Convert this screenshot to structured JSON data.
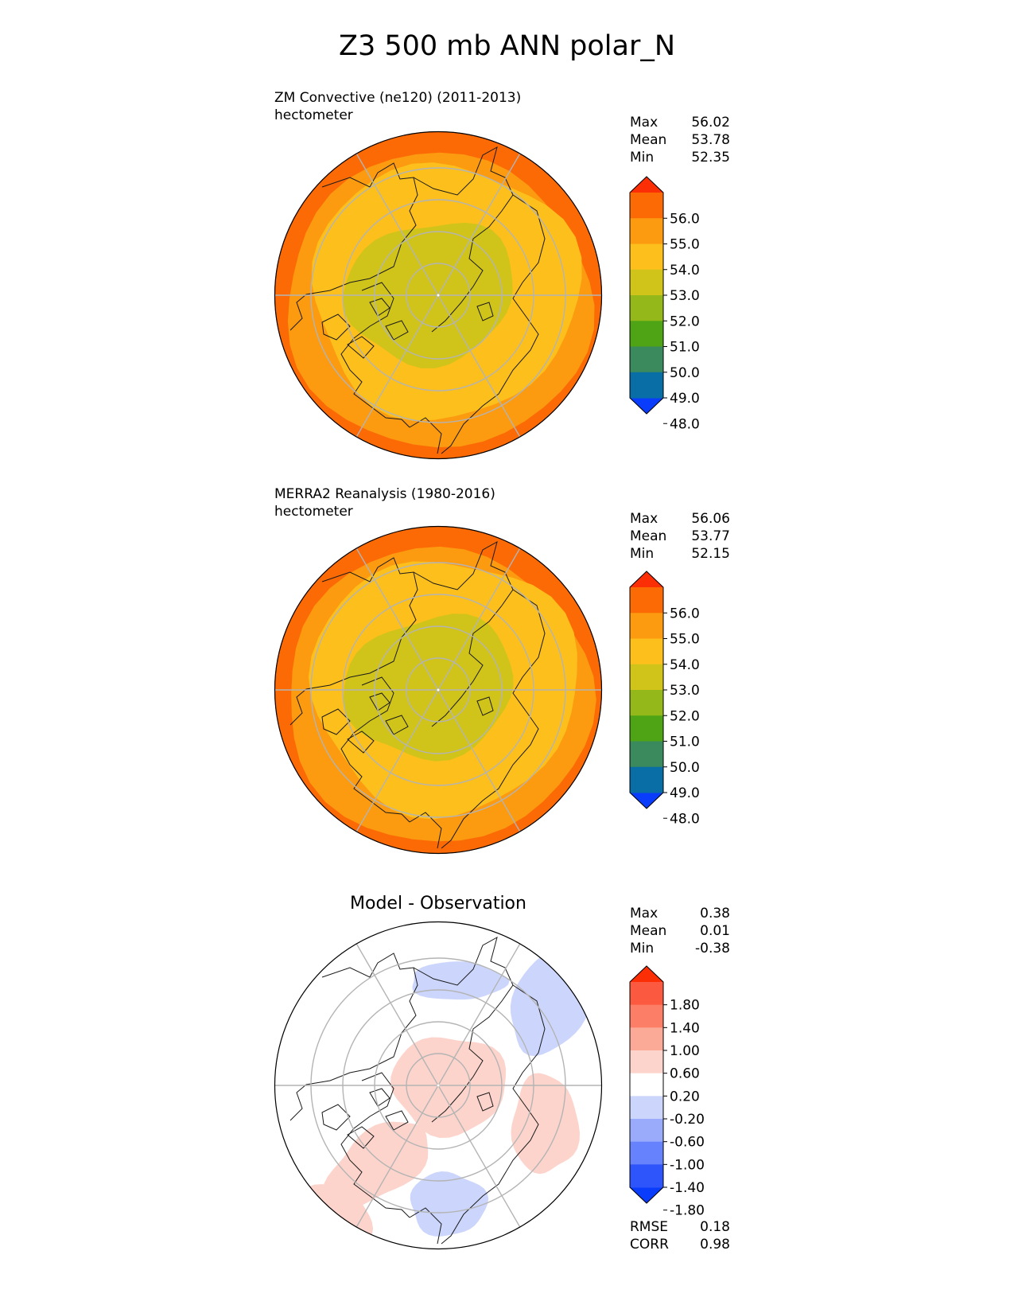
{
  "title": "Z3 500 mb ANN polar_N",
  "colors": {
    "abs_levels": [
      "#0a3cfc",
      "#0a6ea6",
      "#3a8a5e",
      "#4ea414",
      "#94b81a",
      "#d0c41a",
      "#fcbf1c",
      "#fc9a10",
      "#fc6a06",
      "#fc2e06"
    ],
    "diff_levels": [
      "#0a3cfc",
      "#2e54fc",
      "#6682fc",
      "#9aabfc",
      "#ccd6fc",
      "#ffffff",
      "#fcd4cc",
      "#fcaa98",
      "#fc7e66",
      "#fc5a40",
      "#fc2e06"
    ],
    "grid": "#b4b4b4",
    "coast": "#1a1a1a"
  },
  "panels": [
    {
      "label": "ZM Convective (ne120) (2011-2013)",
      "units": "hectometer",
      "stats": [
        {
          "key": "Max",
          "value": "56.02"
        },
        {
          "key": "Mean",
          "value": "53.78"
        },
        {
          "key": "Min",
          "value": "52.35"
        }
      ]
    },
    {
      "label": "MERRA2 Reanalysis (1980-2016)",
      "units": "hectometer",
      "stats": [
        {
          "key": "Max",
          "value": "56.06"
        },
        {
          "key": "Mean",
          "value": "53.77"
        },
        {
          "key": "Min",
          "value": "52.15"
        }
      ]
    },
    {
      "title": "Model - Observation",
      "stats": [
        {
          "key": "Max",
          "value": "0.38"
        },
        {
          "key": "Mean",
          "value": "0.01"
        },
        {
          "key": "Min",
          "value": "-0.38"
        }
      ],
      "bottom_stats": [
        {
          "key": "RMSE",
          "value": "0.18"
        },
        {
          "key": "CORR",
          "value": "0.98"
        }
      ]
    }
  ],
  "chart_data": [
    {
      "type": "heatmap",
      "projection": "north polar stereographic",
      "variable": "Z3 500 mb",
      "colorbar_ticks": [
        "56.0",
        "55.0",
        "54.0",
        "53.0",
        "52.0",
        "51.0",
        "50.0",
        "49.0",
        "48.0"
      ],
      "contour_levels": [
        48,
        49,
        50,
        51,
        52,
        53,
        54,
        55,
        56
      ],
      "extend": "both",
      "max": 56.02,
      "mean": 53.78,
      "min": 52.35
    },
    {
      "type": "heatmap",
      "projection": "north polar stereographic",
      "variable": "Z3 500 mb",
      "colorbar_ticks": [
        "56.0",
        "55.0",
        "54.0",
        "53.0",
        "52.0",
        "51.0",
        "50.0",
        "49.0",
        "48.0"
      ],
      "contour_levels": [
        48,
        49,
        50,
        51,
        52,
        53,
        54,
        55,
        56
      ],
      "extend": "both",
      "max": 56.06,
      "mean": 53.77,
      "min": 52.15
    },
    {
      "type": "heatmap",
      "projection": "north polar stereographic",
      "variable": "Z3 500 mb difference",
      "colorbar_ticks": [
        "1.80",
        "1.40",
        "1.00",
        "0.60",
        "0.20",
        "-0.20",
        "-0.60",
        "-1.00",
        "-1.40",
        "-1.80"
      ],
      "contour_levels": [
        -1.8,
        -1.4,
        -1.0,
        -0.6,
        -0.2,
        0.2,
        0.6,
        1.0,
        1.4,
        1.8
      ],
      "extend": "both",
      "max": 0.38,
      "mean": 0.01,
      "min": -0.38,
      "rmse": 0.18,
      "corr": 0.98
    }
  ]
}
